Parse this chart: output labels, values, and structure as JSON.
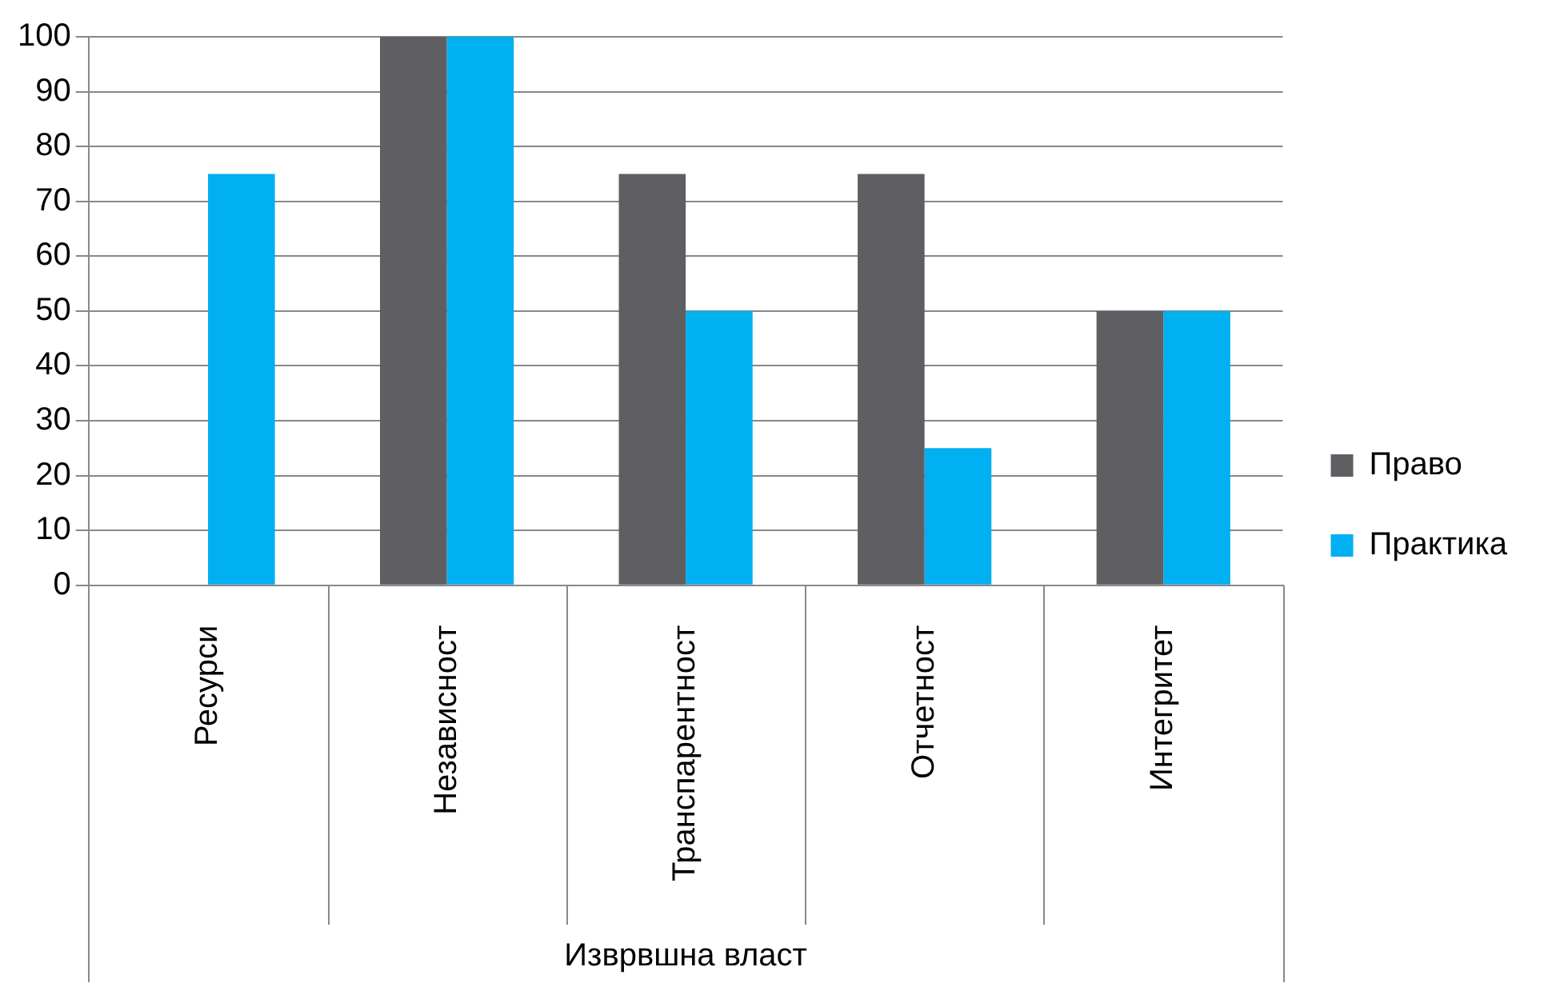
{
  "chart_data": {
    "type": "bar",
    "categories": [
      "Ресурси",
      "Независност",
      "Транспарентност",
      "Отчетност",
      "Интегритет"
    ],
    "xlabel": "Изврвшна власт",
    "series": [
      {
        "name": "Право",
        "color": "#5f5f63",
        "values": [
          0,
          100,
          75,
          75,
          50
        ]
      },
      {
        "name": "Практика",
        "color": "#00b0f0",
        "values": [
          75,
          100,
          50,
          25,
          50
        ]
      }
    ],
    "ylim": [
      0,
      100
    ],
    "yticks": [
      0,
      10,
      20,
      30,
      40,
      50,
      60,
      70,
      80,
      90,
      100
    ],
    "grid": "y",
    "legend": "right"
  }
}
